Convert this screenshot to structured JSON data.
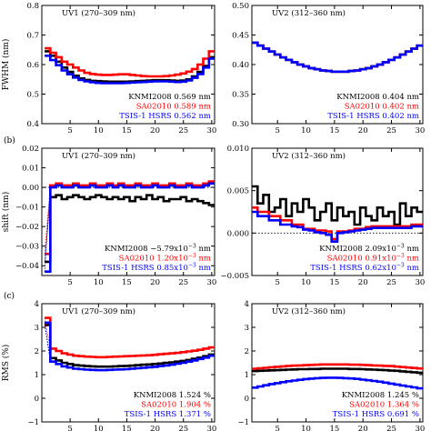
{
  "chart_data": [
    {
      "id": "p1",
      "type": "line",
      "title": "UV1 (270–309 nm)",
      "ylabel": "FWHM (nm)",
      "xlim": [
        0,
        30.5
      ],
      "ylim": [
        0.4,
        0.8
      ],
      "xticks": [
        "5",
        "10",
        "15",
        "20",
        "25",
        "30"
      ],
      "yticks": [
        "0.4",
        "0.5",
        "0.6",
        "0.7",
        "0.8"
      ],
      "grid": false,
      "legend_position": "bottom-right",
      "panel_label": "",
      "series": [
        {
          "name": "KNMI2008",
          "stat": "0.569",
          "unit": "nm",
          "color": "#000000",
          "values": [
            0.645,
            0.63,
            0.61,
            0.59,
            0.575,
            0.562,
            0.553,
            0.548,
            0.545,
            0.544,
            0.543,
            0.542,
            0.542,
            0.542,
            0.542,
            0.543,
            0.544,
            0.545,
            0.546,
            0.547,
            0.547,
            0.547,
            0.546,
            0.545,
            0.546,
            0.55,
            0.56,
            0.575,
            0.595,
            0.625
          ]
        },
        {
          "name": "SA02010",
          "stat": "0.589",
          "unit": "nm",
          "color": "#ff0000",
          "values": [
            0.655,
            0.64,
            0.625,
            0.61,
            0.6,
            0.59,
            0.58,
            0.572,
            0.568,
            0.566,
            0.565,
            0.565,
            0.566,
            0.567,
            0.567,
            0.565,
            0.563,
            0.561,
            0.56,
            0.56,
            0.56,
            0.561,
            0.563,
            0.566,
            0.57,
            0.576,
            0.585,
            0.6,
            0.62,
            0.645
          ]
        },
        {
          "name": "TSIS-1 HSRS",
          "stat": "0.562",
          "unit": "nm",
          "color": "#0000ff",
          "values": [
            0.63,
            0.615,
            0.598,
            0.58,
            0.567,
            0.556,
            0.548,
            0.543,
            0.54,
            0.538,
            0.537,
            0.537,
            0.537,
            0.537,
            0.538,
            0.539,
            0.54,
            0.541,
            0.542,
            0.543,
            0.543,
            0.543,
            0.542,
            0.541,
            0.542,
            0.546,
            0.555,
            0.568,
            0.59,
            0.62
          ]
        }
      ]
    },
    {
      "id": "p2",
      "type": "line",
      "title": "UV2 (312–360 nm)",
      "ylabel": "",
      "xlim": [
        0.5,
        30.5
      ],
      "ylim": [
        0.3,
        0.5
      ],
      "xticks": [
        "5",
        "10",
        "15",
        "20",
        "25",
        "30"
      ],
      "yticks": [
        "0.30",
        "0.35",
        "0.40",
        "0.45",
        "0.50"
      ],
      "grid": false,
      "legend_position": "bottom-right",
      "panel_label": "",
      "series": [
        {
          "name": "KNMI2008",
          "stat": "0.404",
          "unit": "nm",
          "color": "#000000",
          "values": [
            0.437,
            0.432,
            0.427,
            0.422,
            0.417,
            0.412,
            0.408,
            0.404,
            0.4,
            0.397,
            0.394,
            0.392,
            0.39,
            0.389,
            0.388,
            0.388,
            0.388,
            0.389,
            0.39,
            0.392,
            0.394,
            0.397,
            0.4,
            0.404,
            0.408,
            0.412,
            0.417,
            0.422,
            0.427,
            0.432
          ]
        },
        {
          "name": "SA02010",
          "stat": "0.402",
          "unit": "nm",
          "color": "#ff0000",
          "values": [
            0.437,
            0.432,
            0.427,
            0.422,
            0.417,
            0.412,
            0.408,
            0.404,
            0.4,
            0.397,
            0.394,
            0.392,
            0.39,
            0.389,
            0.388,
            0.388,
            0.388,
            0.389,
            0.39,
            0.392,
            0.394,
            0.397,
            0.4,
            0.404,
            0.408,
            0.412,
            0.417,
            0.422,
            0.427,
            0.432
          ]
        },
        {
          "name": "TSIS-1 HSRS",
          "stat": "0.402",
          "unit": "nm",
          "color": "#0000ff",
          "values": [
            0.437,
            0.432,
            0.427,
            0.422,
            0.417,
            0.412,
            0.408,
            0.404,
            0.4,
            0.397,
            0.394,
            0.392,
            0.39,
            0.389,
            0.388,
            0.388,
            0.388,
            0.389,
            0.39,
            0.392,
            0.394,
            0.397,
            0.4,
            0.404,
            0.408,
            0.412,
            0.417,
            0.422,
            0.427,
            0.432
          ]
        }
      ]
    },
    {
      "id": "p3",
      "type": "line",
      "title": "UV1 (270–309 nm)",
      "ylabel": "shift (nm)",
      "xlim": [
        0,
        30.5
      ],
      "ylim": [
        -0.045,
        0.02
      ],
      "xticks": [
        "5",
        "10",
        "15",
        "20",
        "25",
        "30"
      ],
      "yticks": [
        "−0.04",
        "−0.03",
        "−0.02",
        "−0.01",
        "0.00",
        "0.01",
        "0.02"
      ],
      "zero_line": true,
      "grid": false,
      "legend_position": "bottom-right",
      "panel_label": "(b)",
      "series": [
        {
          "name": "KNMI2008",
          "stat": "−5.79x10",
          "exp": "−3",
          "unit": "nm",
          "color": "#000000",
          "values": [
            -0.038,
            -0.005,
            -0.004,
            -0.006,
            -0.005,
            -0.004,
            -0.005,
            -0.006,
            -0.005,
            -0.004,
            -0.005,
            -0.006,
            -0.005,
            -0.006,
            -0.005,
            -0.007,
            -0.005,
            -0.006,
            -0.004,
            -0.006,
            -0.005,
            -0.007,
            -0.006,
            -0.006,
            -0.005,
            -0.007,
            -0.006,
            -0.007,
            -0.008,
            -0.009
          ]
        },
        {
          "name": "SA02010",
          "stat": "1.20x10",
          "exp": "−3",
          "unit": "nm",
          "color": "#ff0000",
          "values": [
            -0.034,
            0.001,
            0.002,
            0.001,
            0.001,
            0.002,
            0.001,
            0.001,
            0.002,
            0.001,
            0.001,
            0.002,
            0.001,
            0.002,
            0.001,
            0.001,
            0.002,
            0.001,
            0.001,
            0.002,
            0.001,
            0.001,
            0.002,
            0.001,
            0.001,
            0.002,
            0.001,
            0.001,
            0.002,
            0.003
          ]
        },
        {
          "name": "TSIS-1 HSRS",
          "stat": "0.85x10",
          "exp": "−3",
          "unit": "nm",
          "color": "#0000ff",
          "values": [
            -0.043,
            0.0,
            0.001,
            0.0,
            0.0,
            0.001,
            0.0,
            0.0,
            0.001,
            0.0,
            0.0,
            0.001,
            0.0,
            0.001,
            0.0,
            0.0,
            0.001,
            0.0,
            0.0,
            0.001,
            0.0,
            0.0,
            0.001,
            0.0,
            0.0,
            0.001,
            0.0,
            0.0,
            0.001,
            0.002
          ]
        }
      ]
    },
    {
      "id": "p4",
      "type": "line",
      "title": "UV2 (312–360 nm)",
      "ylabel": "",
      "xlim": [
        0.5,
        30.5
      ],
      "ylim": [
        -0.005,
        0.01
      ],
      "xticks": [
        "5",
        "10",
        "15",
        "20",
        "25",
        "30"
      ],
      "yticks": [
        "−0.005",
        "0.000",
        "0.005",
        "0.010"
      ],
      "zero_line": true,
      "grid": false,
      "legend_position": "bottom-right",
      "panel_label": "",
      "series": [
        {
          "name": "KNMI2008",
          "stat": "2.09x10",
          "exp": "−3",
          "unit": "nm",
          "color": "#000000",
          "values": [
            0.0055,
            0.0035,
            0.0045,
            0.0025,
            0.003,
            0.004,
            0.002,
            0.0035,
            0.0025,
            0.004,
            0.003,
            0.0015,
            0.0025,
            0.0035,
            0.0015,
            0.003,
            0.002,
            0.0025,
            0.001,
            0.003,
            0.002,
            0.0015,
            0.003,
            0.002,
            0.0025,
            0.001,
            0.0035,
            0.002,
            0.003,
            0.0025
          ]
        },
        {
          "name": "SA02010",
          "stat": "0.91x10",
          "exp": "−3",
          "unit": "nm",
          "color": "#ff0000",
          "values": [
            0.003,
            0.0025,
            0.0025,
            0.002,
            0.002,
            0.0015,
            0.0015,
            0.001,
            0.001,
            0.0005,
            0.0005,
            0.0003,
            0.0003,
            0.0002,
            -0.0007,
            0.0002,
            0.0002,
            0.0003,
            0.0005,
            0.0005,
            0.0007,
            0.0008,
            0.0008,
            0.0008,
            0.0008,
            0.0008,
            0.0008,
            0.0008,
            0.001,
            0.001
          ]
        },
        {
          "name": "TSIS-1 HSRS",
          "stat": "0.62x10",
          "exp": "−3",
          "unit": "nm",
          "color": "#0000ff",
          "values": [
            0.0025,
            0.002,
            0.002,
            0.0015,
            0.0015,
            0.001,
            0.001,
            0.0008,
            0.0007,
            0.0004,
            0.0003,
            0.0001,
            0.0,
            -0.0002,
            -0.001,
            0.0,
            0.0001,
            0.0002,
            0.0003,
            0.0004,
            0.0005,
            0.0006,
            0.0006,
            0.0006,
            0.0006,
            0.0006,
            0.0006,
            0.0006,
            0.0008,
            0.0008
          ]
        }
      ]
    },
    {
      "id": "p5",
      "type": "line",
      "title": "UV1 (270–309 nm)",
      "ylabel": "RMS (%)",
      "xlim": [
        0,
        30.5
      ],
      "ylim": [
        -1,
        4
      ],
      "xticks": [
        "5",
        "10",
        "15",
        "20",
        "25",
        "30"
      ],
      "yticks": [
        "−1",
        "0",
        "1",
        "2",
        "3",
        "4"
      ],
      "grid": false,
      "legend_position": "bottom-right",
      "panel_label": "(c)",
      "series": [
        {
          "name": "KNMI2008",
          "stat": "1.524",
          "unit": "%",
          "color": "#000000",
          "values": [
            3.1,
            1.7,
            1.6,
            1.5,
            1.45,
            1.4,
            1.38,
            1.36,
            1.35,
            1.34,
            1.34,
            1.34,
            1.35,
            1.36,
            1.37,
            1.38,
            1.4,
            1.42,
            1.43,
            1.45,
            1.47,
            1.5,
            1.52,
            1.55,
            1.58,
            1.62,
            1.67,
            1.72,
            1.78,
            1.85
          ]
        },
        {
          "name": "SA02010",
          "stat": "1.904",
          "unit": "%",
          "color": "#ff0000",
          "values": [
            3.4,
            2.1,
            2.0,
            1.9,
            1.85,
            1.8,
            1.78,
            1.76,
            1.75,
            1.74,
            1.74,
            1.75,
            1.76,
            1.77,
            1.78,
            1.79,
            1.8,
            1.81,
            1.82,
            1.84,
            1.86,
            1.88,
            1.9,
            1.92,
            1.95,
            1.98,
            2.01,
            2.05,
            2.1,
            2.15
          ]
        },
        {
          "name": "TSIS-1 HSRS",
          "stat": "1.371",
          "unit": "%",
          "color": "#0000ff",
          "values": [
            3.2,
            1.55,
            1.45,
            1.35,
            1.3,
            1.25,
            1.23,
            1.21,
            1.2,
            1.19,
            1.19,
            1.2,
            1.21,
            1.22,
            1.23,
            1.25,
            1.27,
            1.29,
            1.31,
            1.33,
            1.36,
            1.39,
            1.42,
            1.46,
            1.5,
            1.55,
            1.6,
            1.66,
            1.72,
            1.8
          ]
        }
      ]
    },
    {
      "id": "p6",
      "type": "line",
      "title": "UV2 (312–360 nm)",
      "ylabel": "",
      "xlim": [
        0.5,
        30.5
      ],
      "ylim": [
        -1,
        4
      ],
      "xticks": [
        "5",
        "10",
        "15",
        "20",
        "25",
        "30"
      ],
      "yticks": [
        "−1",
        "0",
        "1",
        "2",
        "3",
        "4"
      ],
      "grid": false,
      "legend_position": "bottom-right",
      "panel_label": "",
      "series": [
        {
          "name": "KNMI2008",
          "stat": "1.245",
          "unit": "%",
          "color": "#000000",
          "values": [
            1.15,
            1.16,
            1.17,
            1.18,
            1.19,
            1.2,
            1.21,
            1.22,
            1.23,
            1.23,
            1.24,
            1.24,
            1.25,
            1.25,
            1.25,
            1.25,
            1.25,
            1.24,
            1.24,
            1.23,
            1.22,
            1.21,
            1.2,
            1.19,
            1.17,
            1.16,
            1.14,
            1.12,
            1.1,
            1.08
          ]
        },
        {
          "name": "SA02010",
          "stat": "1.364",
          "unit": "%",
          "color": "#ff0000",
          "values": [
            1.25,
            1.27,
            1.29,
            1.31,
            1.33,
            1.35,
            1.37,
            1.38,
            1.39,
            1.4,
            1.41,
            1.42,
            1.43,
            1.43,
            1.43,
            1.43,
            1.43,
            1.42,
            1.42,
            1.41,
            1.4,
            1.39,
            1.38,
            1.37,
            1.36,
            1.34,
            1.32,
            1.3,
            1.28,
            1.26
          ]
        },
        {
          "name": "TSIS-1 HSRS",
          "stat": "0.691",
          "unit": "%",
          "color": "#0000ff",
          "values": [
            0.45,
            0.5,
            0.55,
            0.6,
            0.64,
            0.68,
            0.72,
            0.75,
            0.78,
            0.81,
            0.83,
            0.85,
            0.86,
            0.87,
            0.87,
            0.86,
            0.85,
            0.84,
            0.82,
            0.79,
            0.76,
            0.73,
            0.7,
            0.66,
            0.62,
            0.58,
            0.54,
            0.5,
            0.46,
            0.42
          ]
        }
      ]
    }
  ]
}
